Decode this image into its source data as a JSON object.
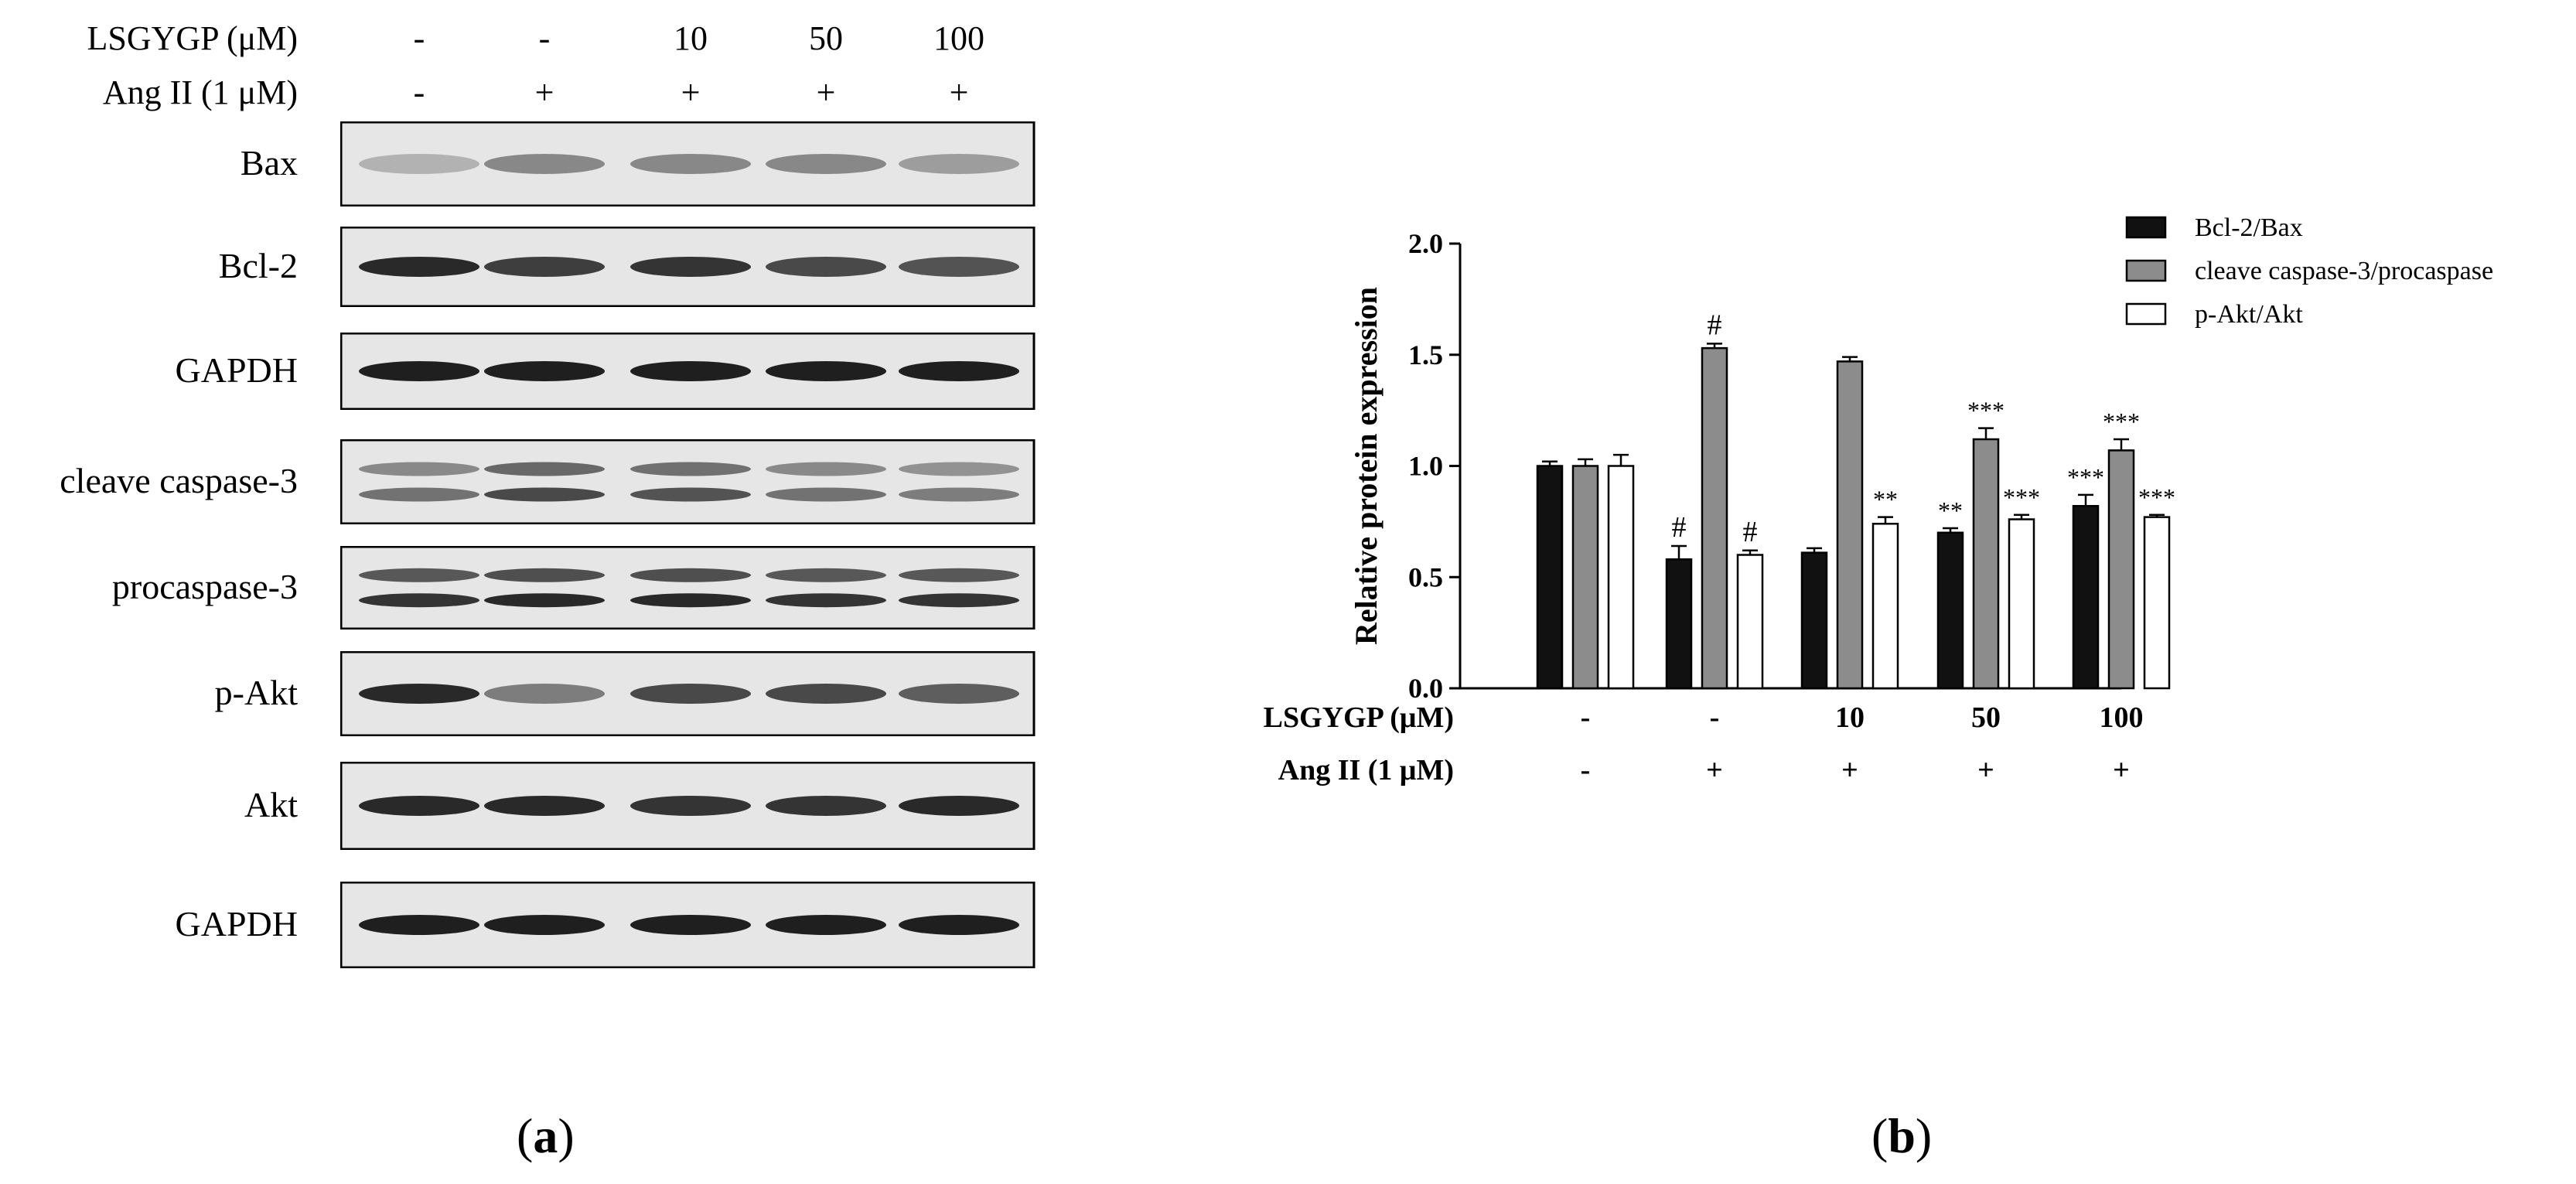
{
  "panel_a": {
    "label_letter": "a",
    "conditions": [
      {
        "label": "LSGYGP (μM)",
        "values": [
          "-",
          "-",
          "10",
          "50",
          "100"
        ]
      },
      {
        "label": "Ang II (1 μM)",
        "values": [
          "-",
          "+",
          "+",
          "+",
          "+"
        ]
      }
    ],
    "blots": [
      {
        "label": "Bax",
        "intensity": [
          0.25,
          0.45,
          0.45,
          0.45,
          0.35
        ],
        "double": false
      },
      {
        "label": "Bcl-2",
        "intensity": [
          0.9,
          0.8,
          0.85,
          0.75,
          0.7
        ],
        "double": false
      },
      {
        "label": "GAPDH",
        "intensity": [
          0.95,
          0.95,
          0.95,
          0.95,
          0.95
        ],
        "double": false
      },
      {
        "label": "cleave caspase-3",
        "intensity": [
          0.55,
          0.75,
          0.7,
          0.55,
          0.5
        ],
        "double": true
      },
      {
        "label": "procaspase-3",
        "intensity": [
          0.85,
          0.9,
          0.9,
          0.85,
          0.85
        ],
        "double": true
      },
      {
        "label": "p-Akt",
        "intensity": [
          0.9,
          0.5,
          0.75,
          0.75,
          0.65
        ],
        "double": false
      },
      {
        "label": "Akt",
        "intensity": [
          0.9,
          0.9,
          0.85,
          0.85,
          0.9
        ],
        "double": false
      },
      {
        "label": "GAPDH",
        "intensity": [
          0.95,
          0.95,
          0.95,
          0.95,
          0.95
        ],
        "double": false
      }
    ]
  },
  "panel_b": {
    "label_letter": "b",
    "conditions": [
      {
        "label": "LSGYGP (μM)",
        "values": [
          "-",
          "-",
          "10",
          "50",
          "100"
        ]
      },
      {
        "label": "Ang II (1 μM)",
        "values": [
          "-",
          "+",
          "+",
          "+",
          "+"
        ]
      }
    ]
  },
  "chart_data": {
    "type": "bar",
    "title": "",
    "xlabel": "",
    "ylabel": "Relative protein expression",
    "ylim": [
      0,
      2.0
    ],
    "yticks": [
      "0.0",
      "0.5",
      "1.0",
      "1.5",
      "2.0"
    ],
    "categories": [
      "1",
      "2",
      "3",
      "4",
      "5"
    ],
    "legend_position": "top-right",
    "series": [
      {
        "name": "Bcl-2/Bax",
        "color": "#111111",
        "values": [
          1.0,
          0.58,
          0.61,
          0.7,
          0.82
        ],
        "errors": [
          0.02,
          0.06,
          0.02,
          0.02,
          0.05
        ],
        "annotations": [
          "",
          "#",
          "",
          "**",
          "***"
        ]
      },
      {
        "name": "cleave caspase-3/procaspase",
        "color": "#8c8c8c",
        "values": [
          1.0,
          1.53,
          1.47,
          1.12,
          1.07
        ],
        "errors": [
          0.03,
          0.02,
          0.02,
          0.05,
          0.05
        ],
        "annotations": [
          "",
          "#",
          "",
          "***",
          "***"
        ]
      },
      {
        "name": "p-Akt/Akt",
        "color": "#ffffff",
        "values": [
          1.0,
          0.6,
          0.74,
          0.76,
          0.77
        ],
        "errors": [
          0.05,
          0.02,
          0.03,
          0.02,
          0.01
        ],
        "annotations": [
          "",
          "#",
          "**",
          "***",
          "***"
        ]
      }
    ]
  }
}
